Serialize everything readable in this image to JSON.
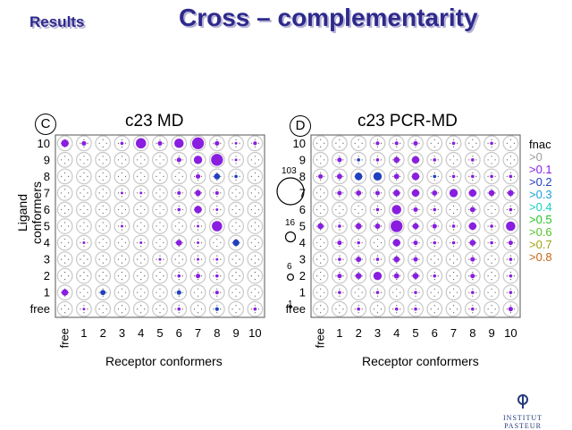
{
  "header": {
    "section": "Results",
    "title": "Cross – complementarity"
  },
  "panels": [
    {
      "badge": "C",
      "title": "c23 MD",
      "ylabel": "Ligand conformers",
      "xlabel": "Receptor conformers"
    },
    {
      "badge": "D",
      "title": "c23 PCR-MD",
      "ylabel": "",
      "xlabel": "Receptor conformers"
    }
  ],
  "ticks": {
    "y": [
      "10",
      "9",
      "8",
      "7",
      "6",
      "5",
      "4",
      "3",
      "2",
      "1",
      "free"
    ],
    "x": [
      "free",
      "1",
      "2",
      "3",
      "4",
      "5",
      "6",
      "7",
      "8",
      "9",
      "10"
    ]
  },
  "size_legend": [
    "103",
    "16",
    "6",
    "1"
  ],
  "fnac_legend": {
    "title": "fnac",
    "items": [
      {
        "label": ">0",
        "color": "#9a9a9a"
      },
      {
        "label": ">0.1",
        "color": "#8a1ee0"
      },
      {
        "label": ">0.2",
        "color": "#2040c0"
      },
      {
        "label": ">0.3",
        "color": "#1aa0d8"
      },
      {
        "label": ">0.4",
        "color": "#18d0c0"
      },
      {
        "label": ">0.5",
        "color": "#22c422"
      },
      {
        "label": ">0.6",
        "color": "#52c42a"
      },
      {
        "label": ">0.7",
        "color": "#a0a010"
      },
      {
        "label": ">0.8",
        "color": "#c86414"
      }
    ]
  },
  "logo_text": "INSTITUT PASTEUR",
  "chart_data": [
    {
      "type": "scatter",
      "title": "c23 MD",
      "xlabel": "Receptor conformers",
      "ylabel": "Ligand conformers",
      "x_categories": [
        "free",
        "1",
        "2",
        "3",
        "4",
        "5",
        "6",
        "7",
        "8",
        "9",
        "10"
      ],
      "y_categories": [
        "free",
        "1",
        "2",
        "3",
        "4",
        "5",
        "6",
        "7",
        "8",
        "9",
        "10"
      ],
      "points": [
        {
          "x": "free",
          "y": "10",
          "size": 16,
          "fnac": ">0.1"
        },
        {
          "x": "1",
          "y": "10",
          "size": 6,
          "fnac": ">0.1"
        },
        {
          "x": "3",
          "y": "10",
          "size": 3,
          "fnac": ">0.1"
        },
        {
          "x": "4",
          "y": "10",
          "size": 30,
          "fnac": ">0.1"
        },
        {
          "x": "5",
          "y": "10",
          "size": 6,
          "fnac": ">0.1"
        },
        {
          "x": "6",
          "y": "10",
          "size": 25,
          "fnac": ">0.1"
        },
        {
          "x": "7",
          "y": "10",
          "size": 40,
          "fnac": ">0.1"
        },
        {
          "x": "8",
          "y": "10",
          "size": 6,
          "fnac": ">0.1"
        },
        {
          "x": "9",
          "y": "10",
          "size": 2,
          "fnac": ">0.1"
        },
        {
          "x": "10",
          "y": "10",
          "size": 4,
          "fnac": ">0.1"
        },
        {
          "x": "6",
          "y": "9",
          "size": 6,
          "fnac": ">0.1"
        },
        {
          "x": "7",
          "y": "9",
          "size": 20,
          "fnac": ">0.1"
        },
        {
          "x": "8",
          "y": "9",
          "size": 40,
          "fnac": ">0.1"
        },
        {
          "x": "9",
          "y": "9",
          "size": 2,
          "fnac": ">0.1"
        },
        {
          "x": "7",
          "y": "8",
          "size": 6,
          "fnac": ">0.1"
        },
        {
          "x": "8",
          "y": "8",
          "size": 10,
          "fnac": ">0.2"
        },
        {
          "x": "9",
          "y": "8",
          "size": 3,
          "fnac": ">0.2"
        },
        {
          "x": "3",
          "y": "7",
          "size": 2,
          "fnac": ">0.1"
        },
        {
          "x": "4",
          "y": "7",
          "size": 2,
          "fnac": ">0.1"
        },
        {
          "x": "6",
          "y": "7",
          "size": 4,
          "fnac": ">0.1"
        },
        {
          "x": "7",
          "y": "7",
          "size": 10,
          "fnac": ">0.1"
        },
        {
          "x": "8",
          "y": "7",
          "size": 4,
          "fnac": ">0.1"
        },
        {
          "x": "6",
          "y": "6",
          "size": 3,
          "fnac": ">0.1"
        },
        {
          "x": "7",
          "y": "6",
          "size": 16,
          "fnac": ">0.1"
        },
        {
          "x": "8",
          "y": "6",
          "size": 2,
          "fnac": ">0.1"
        },
        {
          "x": "3",
          "y": "5",
          "size": 2,
          "fnac": ">0.1"
        },
        {
          "x": "7",
          "y": "5",
          "size": 2,
          "fnac": ">0.1"
        },
        {
          "x": "8",
          "y": "5",
          "size": 30,
          "fnac": ">0.1"
        },
        {
          "x": "1",
          "y": "4",
          "size": 2,
          "fnac": ">0.1"
        },
        {
          "x": "4",
          "y": "4",
          "size": 2,
          "fnac": ">0.1"
        },
        {
          "x": "6",
          "y": "4",
          "size": 10,
          "fnac": ">0.1"
        },
        {
          "x": "7",
          "y": "4",
          "size": 2,
          "fnac": ">0.1"
        },
        {
          "x": "9",
          "y": "4",
          "size": 12,
          "fnac": ">0.2"
        },
        {
          "x": "5",
          "y": "3",
          "size": 2,
          "fnac": ">0.1"
        },
        {
          "x": "7",
          "y": "3",
          "size": 2,
          "fnac": ">0.1"
        },
        {
          "x": "8",
          "y": "3",
          "size": 2,
          "fnac": ">0.1"
        },
        {
          "x": "6",
          "y": "2",
          "size": 3,
          "fnac": ">0.1"
        },
        {
          "x": "7",
          "y": "2",
          "size": 6,
          "fnac": ">0.1"
        },
        {
          "x": "8",
          "y": "2",
          "size": 3,
          "fnac": ">0.1"
        },
        {
          "x": "free",
          "y": "1",
          "size": 12,
          "fnac": ">0.1"
        },
        {
          "x": "2",
          "y": "1",
          "size": 8,
          "fnac": ">0.2"
        },
        {
          "x": "6",
          "y": "1",
          "size": 6,
          "fnac": ">0.2"
        },
        {
          "x": "8",
          "y": "1",
          "size": 4,
          "fnac": ">0.1"
        },
        {
          "x": "1",
          "y": "free",
          "size": 2,
          "fnac": ">0.1"
        },
        {
          "x": "6",
          "y": "free",
          "size": 3,
          "fnac": ">0.1"
        },
        {
          "x": "8",
          "y": "free",
          "size": 4,
          "fnac": ">0.2"
        },
        {
          "x": "10",
          "y": "free",
          "size": 3,
          "fnac": ">0.1"
        }
      ]
    },
    {
      "type": "scatter",
      "title": "c23 PCR-MD",
      "xlabel": "Receptor conformers",
      "ylabel": "Ligand conformers",
      "x_categories": [
        "free",
        "1",
        "2",
        "3",
        "4",
        "5",
        "6",
        "7",
        "8",
        "9",
        "10"
      ],
      "y_categories": [
        "free",
        "1",
        "2",
        "3",
        "4",
        "5",
        "6",
        "7",
        "8",
        "9",
        "10"
      ],
      "points": [
        {
          "x": "3",
          "y": "10",
          "size": 4,
          "fnac": ">0.1"
        },
        {
          "x": "4",
          "y": "10",
          "size": 4,
          "fnac": ">0.1"
        },
        {
          "x": "5",
          "y": "10",
          "size": 6,
          "fnac": ">0.1"
        },
        {
          "x": "7",
          "y": "10",
          "size": 3,
          "fnac": ">0.1"
        },
        {
          "x": "9",
          "y": "10",
          "size": 3,
          "fnac": ">0.1"
        },
        {
          "x": "1",
          "y": "9",
          "size": 6,
          "fnac": ">0.1"
        },
        {
          "x": "2",
          "y": "9",
          "size": 3,
          "fnac": ">0.2"
        },
        {
          "x": "3",
          "y": "9",
          "size": 3,
          "fnac": ">0.1"
        },
        {
          "x": "4",
          "y": "9",
          "size": 10,
          "fnac": ">0.1"
        },
        {
          "x": "5",
          "y": "9",
          "size": 16,
          "fnac": ">0.1"
        },
        {
          "x": "6",
          "y": "9",
          "size": 3,
          "fnac": ">0.1"
        },
        {
          "x": "8",
          "y": "9",
          "size": 3,
          "fnac": ">0.1"
        },
        {
          "x": "free",
          "y": "8",
          "size": 6,
          "fnac": ">0.1"
        },
        {
          "x": "1",
          "y": "8",
          "size": 8,
          "fnac": ">0.1"
        },
        {
          "x": "2",
          "y": "8",
          "size": 16,
          "fnac": ">0.2"
        },
        {
          "x": "3",
          "y": "8",
          "size": 20,
          "fnac": ">0.2"
        },
        {
          "x": "4",
          "y": "8",
          "size": 8,
          "fnac": ">0.1"
        },
        {
          "x": "5",
          "y": "8",
          "size": 16,
          "fnac": ">0.1"
        },
        {
          "x": "6",
          "y": "8",
          "size": 3,
          "fnac": ">0.2"
        },
        {
          "x": "7",
          "y": "8",
          "size": 3,
          "fnac": ">0.1"
        },
        {
          "x": "8",
          "y": "8",
          "size": 3,
          "fnac": ">0.1"
        },
        {
          "x": "9",
          "y": "8",
          "size": 3,
          "fnac": ">0.1"
        },
        {
          "x": "10",
          "y": "8",
          "size": 3,
          "fnac": ">0.1"
        },
        {
          "x": "1",
          "y": "7",
          "size": 6,
          "fnac": ">0.1"
        },
        {
          "x": "2",
          "y": "7",
          "size": 8,
          "fnac": ">0.1"
        },
        {
          "x": "3",
          "y": "7",
          "size": 6,
          "fnac": ">0.1"
        },
        {
          "x": "4",
          "y": "7",
          "size": 12,
          "fnac": ">0.1"
        },
        {
          "x": "5",
          "y": "7",
          "size": 16,
          "fnac": ">0.1"
        },
        {
          "x": "6",
          "y": "7",
          "size": 8,
          "fnac": ">0.1"
        },
        {
          "x": "7",
          "y": "7",
          "size": 20,
          "fnac": ">0.1"
        },
        {
          "x": "8",
          "y": "7",
          "size": 16,
          "fnac": ">0.1"
        },
        {
          "x": "9",
          "y": "7",
          "size": 10,
          "fnac": ">0.1"
        },
        {
          "x": "10",
          "y": "7",
          "size": 10,
          "fnac": ">0.1"
        },
        {
          "x": "3",
          "y": "6",
          "size": 3,
          "fnac": ">0.1"
        },
        {
          "x": "4",
          "y": "6",
          "size": 25,
          "fnac": ">0.1"
        },
        {
          "x": "5",
          "y": "6",
          "size": 6,
          "fnac": ">0.1"
        },
        {
          "x": "6",
          "y": "6",
          "size": 3,
          "fnac": ">0.1"
        },
        {
          "x": "8",
          "y": "6",
          "size": 8,
          "fnac": ">0.1"
        },
        {
          "x": "10",
          "y": "6",
          "size": 3,
          "fnac": ">0.1"
        },
        {
          "x": "free",
          "y": "5",
          "size": 10,
          "fnac": ">0.1"
        },
        {
          "x": "1",
          "y": "5",
          "size": 3,
          "fnac": ">0.1"
        },
        {
          "x": "2",
          "y": "5",
          "size": 10,
          "fnac": ">0.1"
        },
        {
          "x": "3",
          "y": "5",
          "size": 8,
          "fnac": ">0.1"
        },
        {
          "x": "4",
          "y": "5",
          "size": 40,
          "fnac": ">0.1"
        },
        {
          "x": "5",
          "y": "5",
          "size": 10,
          "fnac": ">0.1"
        },
        {
          "x": "6",
          "y": "5",
          "size": 6,
          "fnac": ">0.1"
        },
        {
          "x": "7",
          "y": "5",
          "size": 3,
          "fnac": ">0.1"
        },
        {
          "x": "8",
          "y": "5",
          "size": 16,
          "fnac": ">0.1"
        },
        {
          "x": "9",
          "y": "5",
          "size": 3,
          "fnac": ">0.1"
        },
        {
          "x": "10",
          "y": "5",
          "size": 25,
          "fnac": ">0.1"
        },
        {
          "x": "1",
          "y": "4",
          "size": 6,
          "fnac": ">0.1"
        },
        {
          "x": "2",
          "y": "4",
          "size": 3,
          "fnac": ">0.1"
        },
        {
          "x": "4",
          "y": "4",
          "size": 16,
          "fnac": ">0.1"
        },
        {
          "x": "5",
          "y": "4",
          "size": 6,
          "fnac": ">0.1"
        },
        {
          "x": "6",
          "y": "4",
          "size": 3,
          "fnac": ">0.1"
        },
        {
          "x": "7",
          "y": "4",
          "size": 3,
          "fnac": ">0.1"
        },
        {
          "x": "8",
          "y": "4",
          "size": 10,
          "fnac": ">0.1"
        },
        {
          "x": "9",
          "y": "4",
          "size": 3,
          "fnac": ">0.1"
        },
        {
          "x": "10",
          "y": "4",
          "size": 6,
          "fnac": ">0.1"
        },
        {
          "x": "1",
          "y": "3",
          "size": 3,
          "fnac": ">0.1"
        },
        {
          "x": "2",
          "y": "3",
          "size": 8,
          "fnac": ">0.1"
        },
        {
          "x": "3",
          "y": "3",
          "size": 3,
          "fnac": ">0.1"
        },
        {
          "x": "4",
          "y": "3",
          "size": 10,
          "fnac": ">0.1"
        },
        {
          "x": "5",
          "y": "3",
          "size": 6,
          "fnac": ">0.1"
        },
        {
          "x": "8",
          "y": "3",
          "size": 6,
          "fnac": ">0.1"
        },
        {
          "x": "10",
          "y": "3",
          "size": 3,
          "fnac": ">0.1"
        },
        {
          "x": "1",
          "y": "2",
          "size": 6,
          "fnac": ">0.1"
        },
        {
          "x": "2",
          "y": "2",
          "size": 10,
          "fnac": ">0.1"
        },
        {
          "x": "3",
          "y": "2",
          "size": 20,
          "fnac": ">0.1"
        },
        {
          "x": "4",
          "y": "2",
          "size": 8,
          "fnac": ">0.1"
        },
        {
          "x": "5",
          "y": "2",
          "size": 10,
          "fnac": ">0.1"
        },
        {
          "x": "6",
          "y": "2",
          "size": 3,
          "fnac": ">0.1"
        },
        {
          "x": "8",
          "y": "2",
          "size": 6,
          "fnac": ">0.1"
        },
        {
          "x": "10",
          "y": "2",
          "size": 3,
          "fnac": ">0.1"
        },
        {
          "x": "1",
          "y": "1",
          "size": 3,
          "fnac": ">0.1"
        },
        {
          "x": "3",
          "y": "1",
          "size": 3,
          "fnac": ">0.1"
        },
        {
          "x": "5",
          "y": "1",
          "size": 3,
          "fnac": ">0.1"
        },
        {
          "x": "8",
          "y": "1",
          "size": 3,
          "fnac": ">0.1"
        },
        {
          "x": "10",
          "y": "1",
          "size": 3,
          "fnac": ">0.1"
        },
        {
          "x": "2",
          "y": "free",
          "size": 3,
          "fnac": ">0.1"
        },
        {
          "x": "4",
          "y": "free",
          "size": 3,
          "fnac": ">0.1"
        },
        {
          "x": "5",
          "y": "free",
          "size": 3,
          "fnac": ">0.1"
        },
        {
          "x": "8",
          "y": "free",
          "size": 3,
          "fnac": ">0.1"
        },
        {
          "x": "10",
          "y": "free",
          "size": 6,
          "fnac": ">0.1"
        }
      ]
    }
  ]
}
